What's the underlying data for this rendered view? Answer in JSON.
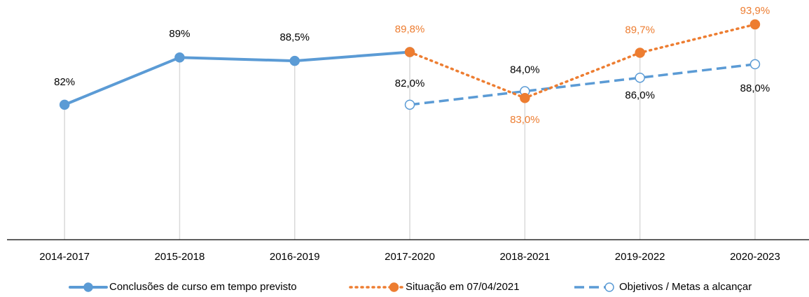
{
  "chart_data": {
    "type": "line",
    "categories": [
      "2014-2017",
      "2015-2018",
      "2016-2019",
      "2017-2020",
      "2018-2021",
      "2019-2022",
      "2020-2023"
    ],
    "ylim": [
      62,
      97
    ],
    "series": [
      {
        "name": "Conclusões de curso em tempo previsto",
        "color": "#5b9bd5",
        "line_style": "solid",
        "marker": "filled",
        "label_color": "#000000",
        "values": [
          82,
          89,
          88.5,
          89.8,
          null,
          null,
          null
        ],
        "value_labels": [
          "82%",
          "89%",
          "88,5%",
          null,
          null,
          null,
          null
        ]
      },
      {
        "name": "Situação em 07/04/2021",
        "color": "#ed7d31",
        "line_style": "dotted",
        "marker": "filled",
        "label_color": "#ed7d31",
        "values": [
          null,
          null,
          null,
          89.8,
          83.0,
          89.7,
          93.9
        ],
        "value_labels": [
          null,
          null,
          null,
          "89,8%",
          "83,0%",
          "89,7%",
          "93,9%"
        ]
      },
      {
        "name": "Objetivos / Metas a alcançar",
        "color": "#5b9bd5",
        "line_style": "dashed",
        "marker": "open",
        "label_color": "#000000",
        "values": [
          null,
          null,
          null,
          82.0,
          84.0,
          86.0,
          88.0
        ],
        "value_labels": [
          null,
          null,
          null,
          "82,0%",
          "84,0%",
          "86,0%",
          "88,0%"
        ]
      }
    ]
  }
}
